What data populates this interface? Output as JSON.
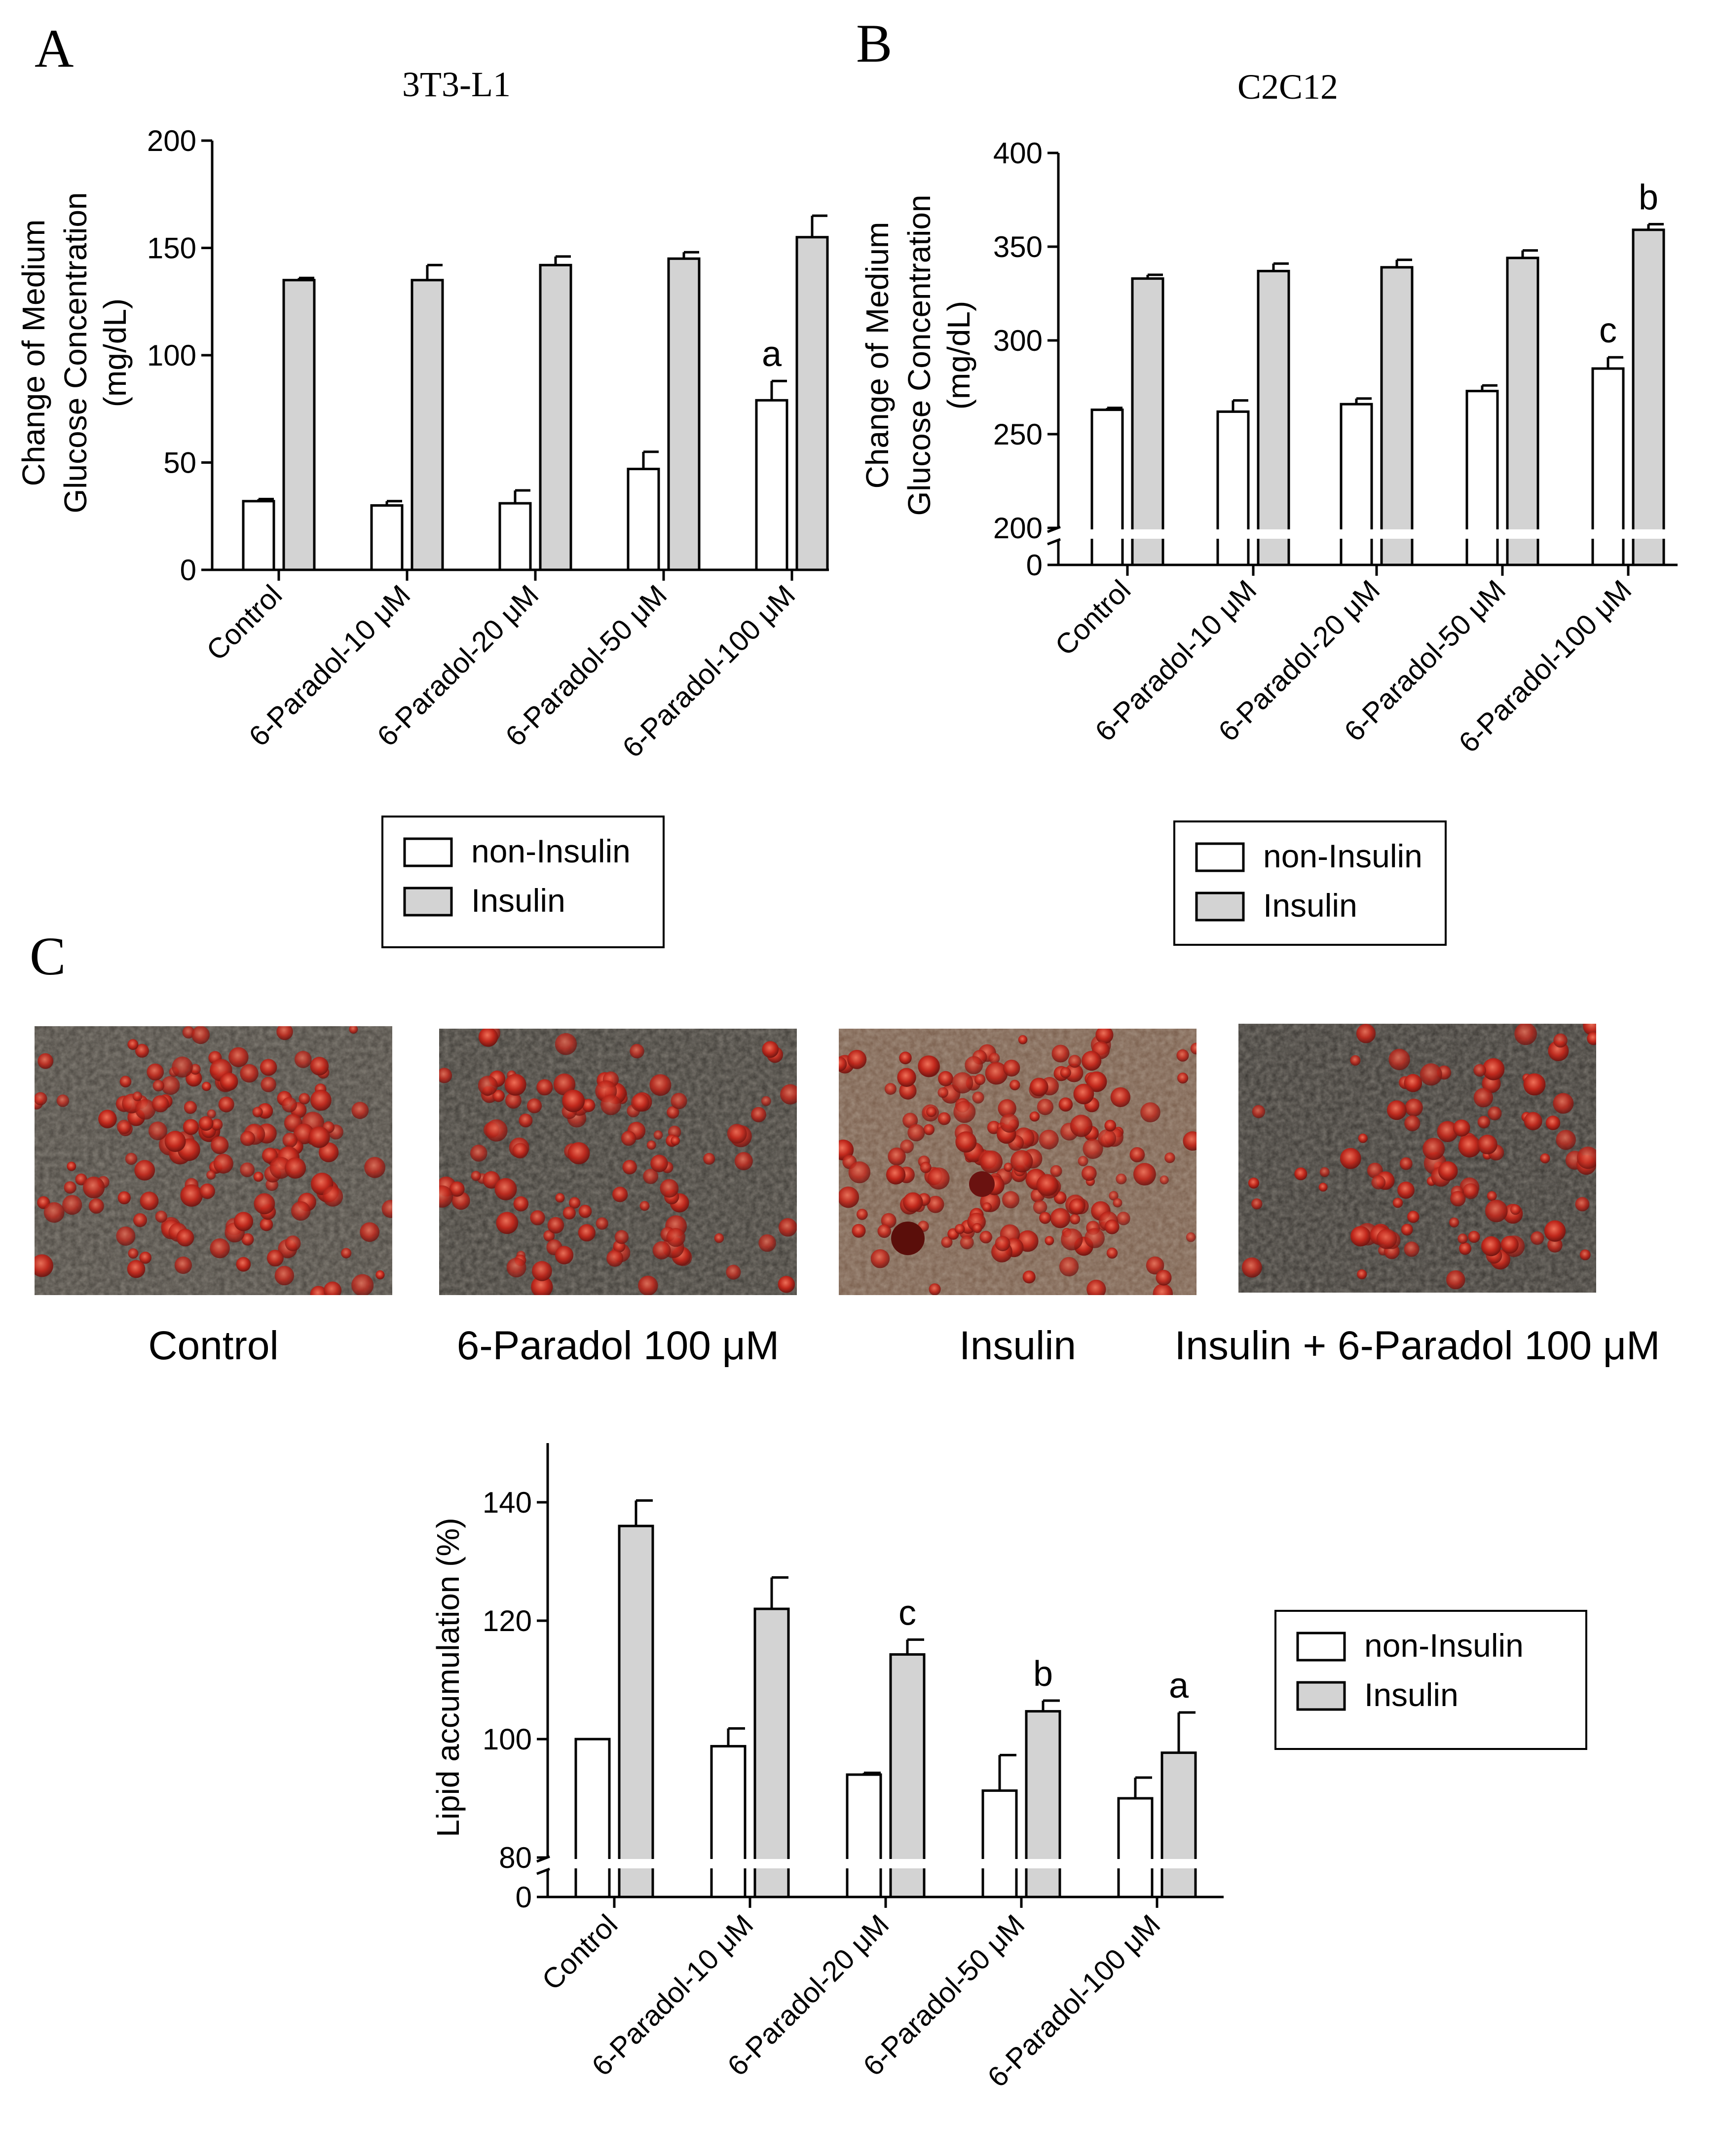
{
  "panels": {
    "A": {
      "letter": "A"
    },
    "B": {
      "letter": "B"
    },
    "C": {
      "letter": "C"
    }
  },
  "chart_data": [
    {
      "id": "A",
      "type": "bar",
      "title": "3T3-L1",
      "ylabel": [
        "Change of Medium",
        "Glucose Concentration",
        "(mg/dL)"
      ],
      "categories": [
        "Control",
        "6-Paradol-10 μM",
        "6-Paradol-20 μM",
        "6-Paradol-50 μM",
        "6-Paradol-100 μM"
      ],
      "ylim": [
        0,
        200
      ],
      "yticks": [
        0,
        50,
        100,
        150,
        200
      ],
      "series": [
        {
          "name": "non-Insulin",
          "color": "#ffffff",
          "values": [
            32,
            30,
            31,
            47,
            79
          ],
          "errors": [
            1,
            2,
            6,
            8,
            9
          ]
        },
        {
          "name": "Insulin",
          "color": "#d3d3d3",
          "values": [
            135,
            135,
            142,
            145,
            155
          ],
          "errors": [
            1,
            7,
            4,
            3,
            10
          ]
        }
      ],
      "annotations": [
        {
          "category": 4,
          "series": 0,
          "text": "a"
        }
      ],
      "legend": {
        "position": "bottom",
        "items": [
          "non-Insulin",
          "Insulin"
        ]
      }
    },
    {
      "id": "B",
      "type": "bar",
      "title": "C2C12",
      "ylabel": [
        "Change of Medium",
        "Glucose Concentration",
        "(mg/dL)"
      ],
      "categories": [
        "Control",
        "6-Paradol-10 μM",
        "6-Paradol-20 μM",
        "6-Paradol-50 μM",
        "6-Paradol-100 μM"
      ],
      "axis_break": {
        "lower": [
          0
        ],
        "upper_range": [
          200,
          400
        ]
      },
      "yticks": [
        0,
        200,
        250,
        300,
        350,
        400
      ],
      "series": [
        {
          "name": "non-Insulin",
          "color": "#ffffff",
          "values": [
            263,
            262,
            266,
            273,
            285
          ],
          "errors": [
            1,
            6,
            3,
            3,
            6
          ]
        },
        {
          "name": "Insulin",
          "color": "#d3d3d3",
          "values": [
            333,
            337,
            339,
            344,
            359
          ],
          "errors": [
            2,
            4,
            4,
            4,
            3
          ]
        }
      ],
      "annotations": [
        {
          "category": 4,
          "series": 0,
          "text": "c"
        },
        {
          "category": 4,
          "series": 1,
          "text": "b"
        }
      ],
      "legend": {
        "position": "bottom",
        "items": [
          "non-Insulin",
          "Insulin"
        ]
      }
    },
    {
      "id": "C",
      "type": "bar",
      "title": "",
      "ylabel": [
        "Lipid accumulation (%)"
      ],
      "categories": [
        "Control",
        "6-Paradol-10 μM",
        "6-Paradol-20 μM",
        "6-Paradol-50 μM",
        "6-Paradol-100 μM"
      ],
      "axis_break": {
        "lower": [
          0
        ],
        "upper_range": [
          80,
          150
        ]
      },
      "yticks": [
        0,
        80,
        100,
        120,
        140
      ],
      "series": [
        {
          "name": "non-Insulin",
          "color": "#ffffff",
          "values": [
            100,
            98.8,
            94,
            91.3,
            90
          ],
          "errors": [
            0,
            3,
            0.3,
            6,
            3.5
          ]
        },
        {
          "name": "Insulin",
          "color": "#d3d3d3",
          "values": [
            136,
            122,
            114.3,
            104.7,
            97.7
          ],
          "errors": [
            4.3,
            5.3,
            2.5,
            1.8,
            6.8
          ]
        }
      ],
      "annotations": [
        {
          "category": 2,
          "series": 1,
          "text": "c"
        },
        {
          "category": 3,
          "series": 1,
          "text": "b"
        },
        {
          "category": 4,
          "series": 1,
          "text": "a"
        }
      ],
      "legend": {
        "position": "right",
        "items": [
          "non-Insulin",
          "Insulin"
        ]
      }
    }
  ],
  "micrographs": [
    {
      "caption": "Control"
    },
    {
      "caption": "6-Paradol 100 μM"
    },
    {
      "caption": "Insulin"
    },
    {
      "caption": "Insulin + 6-Paradol 100 μM"
    }
  ]
}
